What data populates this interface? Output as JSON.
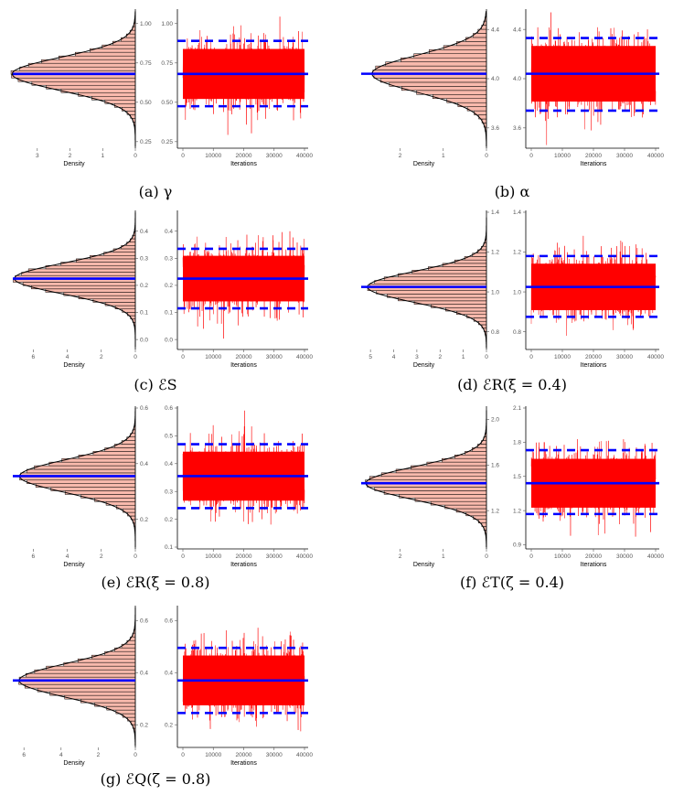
{
  "figure": {
    "colors": {
      "histogram_fill": "#f8b9ac",
      "histogram_stroke": "#000000",
      "trace_color": "#ff0000",
      "estimate_line": "#0000ff"
    },
    "x_label_density": "Density",
    "x_label_trace": "Iterations",
    "iterations_ticks": [
      "0",
      "10000",
      "20000",
      "30000",
      "40000"
    ]
  },
  "chart_data": [
    {
      "id": "a",
      "caption": "(a) γ",
      "type": "histogram+trace",
      "density_ticks": [
        "3",
        "2",
        "1",
        "0"
      ],
      "density_max": 3.75,
      "y_ticks_hist": [
        "0.25",
        "0.50",
        "0.75",
        "1.00"
      ],
      "y_ticks_trace": [
        "0.25",
        "0.50",
        "0.75",
        "1.00"
      ],
      "ylim": [
        0.22,
        1.08
      ],
      "mean": 0.68,
      "lower": 0.475,
      "upper": 0.89,
      "iterations": 40000
    },
    {
      "id": "b",
      "caption": "(b) α",
      "type": "histogram+trace",
      "density_ticks": [
        "2",
        "1",
        "0"
      ],
      "density_max": 2.9,
      "y_ticks_hist": [
        "3.6",
        "4.0",
        "4.4"
      ],
      "y_ticks_trace": [
        "3.6",
        "4.0",
        "4.4"
      ],
      "ylim": [
        3.45,
        4.55
      ],
      "mean": 4.04,
      "lower": 3.74,
      "upper": 4.33,
      "iterations": 40000
    },
    {
      "id": "c",
      "caption": "(c) ℰS",
      "type": "histogram+trace",
      "density_ticks": [
        "6",
        "4",
        "2",
        "0"
      ],
      "density_max": 7.2,
      "y_ticks_hist": [
        "0.0",
        "0.1",
        "0.2",
        "0.3",
        "0.4"
      ],
      "y_ticks_trace": [
        "0.0",
        "0.1",
        "0.2",
        "0.3",
        "0.4"
      ],
      "ylim": [
        -0.03,
        0.47
      ],
      "mean": 0.225,
      "lower": 0.115,
      "upper": 0.335,
      "iterations": 40000
    },
    {
      "id": "d",
      "caption": "(d) ℰR(ξ = 0.4)",
      "type": "histogram+trace",
      "density_ticks": [
        "5",
        "4",
        "3",
        "2",
        "1",
        "0"
      ],
      "density_max": 5.4,
      "y_ticks_hist": [
        "0.8",
        "1.0",
        "1.2",
        "1.4"
      ],
      "y_ticks_trace": [
        "0.8",
        "1.0",
        "1.2",
        "1.4"
      ],
      "ylim": [
        0.72,
        1.4
      ],
      "mean": 1.025,
      "lower": 0.875,
      "upper": 1.18,
      "iterations": 40000
    },
    {
      "id": "e",
      "caption": "(e) ℰR(ξ = 0.8)",
      "type": "histogram+trace",
      "density_ticks": [
        "6",
        "4",
        "2",
        "0"
      ],
      "density_max": 7.2,
      "y_ticks_hist": [
        "0.2",
        "0.4",
        "0.6"
      ],
      "y_ticks_trace": [
        "0.1",
        "0.2",
        "0.3",
        "0.4",
        "0.5",
        "0.6"
      ],
      "ylim": [
        0.1,
        0.6
      ],
      "mean": 0.355,
      "lower": 0.24,
      "upper": 0.47,
      "iterations": 40000
    },
    {
      "id": "f",
      "caption": "(f) ℰT(ζ = 0.4)",
      "type": "histogram+trace",
      "density_ticks": [
        "2",
        "1",
        "0"
      ],
      "density_max": 2.9,
      "y_ticks_hist": [
        "1.2",
        "1.6",
        "2.0"
      ],
      "y_ticks_trace": [
        "0.9",
        "1.2",
        "1.5",
        "1.8",
        "2.1"
      ],
      "ylim": [
        0.88,
        2.1
      ],
      "mean": 1.44,
      "lower": 1.17,
      "upper": 1.73,
      "iterations": 40000
    },
    {
      "id": "g",
      "caption": "(g) ℰQ(ζ = 0.8)",
      "type": "histogram+trace",
      "density_ticks": [
        "6",
        "4",
        "2",
        "0"
      ],
      "density_max": 6.6,
      "y_ticks_hist": [
        "0.2",
        "0.4",
        "0.6"
      ],
      "y_ticks_trace": [
        "0.2",
        "0.4",
        "0.6"
      ],
      "ylim": [
        0.12,
        0.65
      ],
      "mean": 0.37,
      "lower": 0.245,
      "upper": 0.495,
      "iterations": 40000
    }
  ]
}
